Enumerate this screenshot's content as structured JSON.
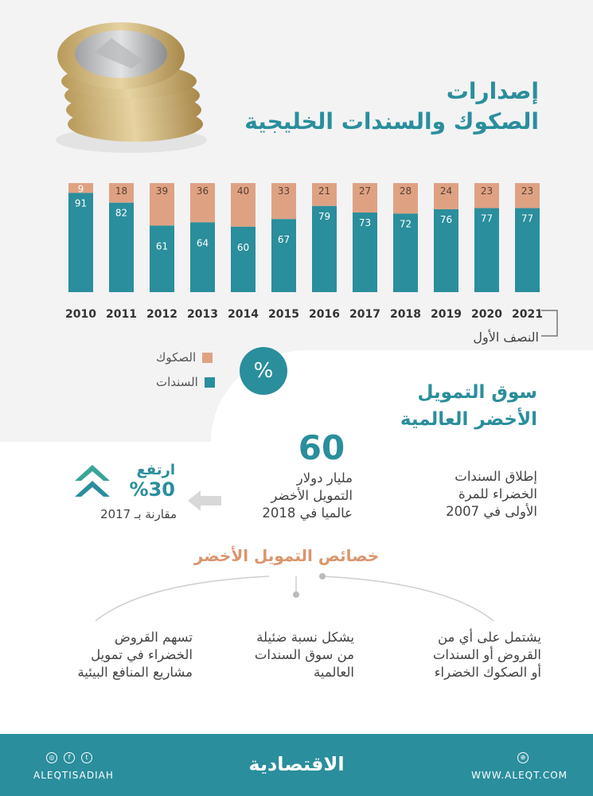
{
  "title": [
    "إصدارات",
    "الصكوك والسندات الخليجية"
  ],
  "chart_data": {
    "type": "bar",
    "stacked": true,
    "unit": "%",
    "categories": [
      "2010",
      "2011",
      "2012",
      "2013",
      "2014",
      "2015",
      "2016",
      "2017",
      "2018",
      "2019",
      "2020",
      "2021"
    ],
    "series": [
      {
        "name": "السندات",
        "color": "#2a8e9c",
        "values": [
          91,
          82,
          61,
          64,
          60,
          67,
          79,
          73,
          72,
          76,
          77,
          77
        ]
      },
      {
        "name": "الصكوك",
        "color": "#dea283",
        "values": [
          9,
          18,
          39,
          36,
          40,
          33,
          21,
          27,
          28,
          24,
          23,
          23
        ]
      }
    ],
    "ylim": [
      0,
      100
    ],
    "grid": false,
    "legend_position": "bottom-left"
  },
  "half_year_note": "النصف الأول",
  "legend_symbol": "%",
  "legend_items": [
    "الصكوك",
    "السندات"
  ],
  "section": {
    "title": [
      "سوق التمويل",
      "الأخضر العالمية"
    ]
  },
  "launch_text": [
    "إطلاق السندات",
    "الخضراء للمرة",
    "الأولى في 2007"
  ],
  "financing": {
    "number": "60",
    "text": [
      "مليار دولار",
      "التمويل الأخضر",
      "عالميا في 2018"
    ]
  },
  "rise": {
    "title": "ارتفع",
    "percent": "%30",
    "subtitle": "مقارنة بـ 2017"
  },
  "features_title": "خصائص التمويل الأخضر",
  "features": [
    [
      "يشتمل على أي من",
      "القروض أو السندات",
      "أو الصكوك الخضراء"
    ],
    [
      "يشكل نسبة ضئيلة",
      "من سوق السندات",
      "العالمية"
    ],
    [
      "تسهم القروض",
      "الخضراء في تمويل",
      "مشاريع المنافع البيئية"
    ]
  ],
  "footer": {
    "url": "WWW.ALEQT.COM",
    "logo": "الاقتصادية",
    "handle": "ALEQTISADIAH"
  },
  "colors": {
    "teal": "#2a8e9c",
    "peach": "#dea283",
    "orange_title": "#d9966d"
  }
}
